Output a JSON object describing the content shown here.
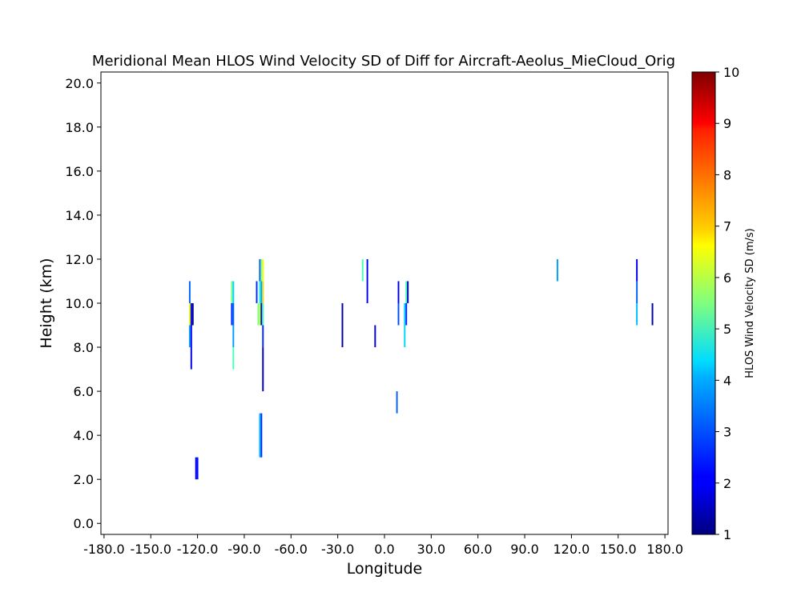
{
  "chart_data": {
    "type": "heatmap",
    "title": "Meridional Mean HLOS Wind Velocity SD of Diff for Aircraft-Aeolus_MieCloud_Orig",
    "xlabel": "Longitude",
    "ylabel": "Height (km)",
    "xlim": [
      -182,
      182
    ],
    "ylim": [
      -0.5,
      20.5
    ],
    "xticks": [
      -180,
      -150,
      -120,
      -90,
      -60,
      -30,
      0,
      30,
      60,
      90,
      120,
      150,
      180
    ],
    "xtick_labels": [
      "-180.0",
      "-150.0",
      "-120.0",
      "-90.0",
      "-60.0",
      "-30.0",
      "0.0",
      "30.0",
      "60.0",
      "90.0",
      "120.0",
      "150.0",
      "180.0"
    ],
    "yticks": [
      0,
      2,
      4,
      6,
      8,
      10,
      12,
      14,
      16,
      18,
      20
    ],
    "ytick_labels": [
      "0.0",
      "2.0",
      "4.0",
      "6.0",
      "8.0",
      "10.0",
      "12.0",
      "14.0",
      "16.0",
      "18.0",
      "20.0"
    ],
    "grid": false,
    "colormap": "jet",
    "colorbar": {
      "label": "HLOS Wind Velocity SD (m/s)",
      "min": 1,
      "max": 10,
      "ticks": [
        1,
        2,
        3,
        4,
        5,
        6,
        7,
        8,
        9,
        10
      ],
      "tick_labels": [
        "1",
        "2",
        "3",
        "4",
        "5",
        "6",
        "7",
        "8",
        "9",
        "10"
      ]
    },
    "cells": [
      {
        "lon": -125,
        "y0": 10,
        "y1": 11,
        "value": 3.0
      },
      {
        "lon": -125,
        "y0": 9,
        "y1": 10,
        "value": 6.5
      },
      {
        "lon": -125,
        "y0": 8,
        "y1": 9,
        "value": 3.5
      },
      {
        "lon": -124,
        "y0": 7,
        "y1": 10,
        "value": 2.0
      },
      {
        "lon": -123,
        "y0": 9,
        "y1": 10,
        "value": 1.2
      },
      {
        "lon": -121,
        "y0": 2,
        "y1": 3,
        "value": 2.0
      },
      {
        "lon": -120,
        "y0": 2,
        "y1": 3,
        "value": 2.2
      },
      {
        "lon": -98,
        "y0": 10,
        "y1": 11,
        "value": 5.5
      },
      {
        "lon": -98,
        "y0": 9,
        "y1": 10,
        "value": 2.5
      },
      {
        "lon": -97,
        "y0": 10,
        "y1": 11,
        "value": 4.0
      },
      {
        "lon": -97,
        "y0": 9,
        "y1": 10,
        "value": 3.0
      },
      {
        "lon": -97,
        "y0": 8,
        "y1": 9,
        "value": 3.5
      },
      {
        "lon": -97,
        "y0": 7,
        "y1": 8,
        "value": 5.0
      },
      {
        "lon": -82,
        "y0": 10,
        "y1": 11,
        "value": 2.5
      },
      {
        "lon": -81,
        "y0": 9,
        "y1": 10,
        "value": 5.5
      },
      {
        "lon": -80,
        "y0": 11,
        "y1": 12,
        "value": 3.0
      },
      {
        "lon": -80,
        "y0": 10,
        "y1": 11,
        "value": 4.5
      },
      {
        "lon": -80,
        "y0": 9,
        "y1": 10,
        "value": 6.0
      },
      {
        "lon": -80,
        "y0": 3,
        "y1": 5,
        "value": 3.8
      },
      {
        "lon": -79,
        "y0": 11,
        "y1": 12,
        "value": 5.5
      },
      {
        "lon": -79,
        "y0": 10,
        "y1": 11,
        "value": 3.5
      },
      {
        "lon": -79,
        "y0": 9,
        "y1": 10,
        "value": 1.5
      },
      {
        "lon": -79,
        "y0": 3,
        "y1": 5,
        "value": 2.5
      },
      {
        "lon": -78,
        "y0": 11,
        "y1": 12,
        "value": 6.5
      },
      {
        "lon": -78,
        "y0": 10,
        "y1": 11,
        "value": 7.0
      },
      {
        "lon": -78,
        "y0": 9,
        "y1": 10,
        "value": 5.0
      },
      {
        "lon": -78,
        "y0": 8,
        "y1": 9,
        "value": 2.5
      },
      {
        "lon": -78,
        "y0": 6,
        "y1": 8,
        "value": 1.5
      },
      {
        "lon": -27,
        "y0": 8,
        "y1": 10,
        "value": 1.3
      },
      {
        "lon": -14,
        "y0": 11,
        "y1": 12,
        "value": 5.0
      },
      {
        "lon": -11,
        "y0": 10,
        "y1": 12,
        "value": 2.0
      },
      {
        "lon": -6,
        "y0": 8,
        "y1": 9,
        "value": 1.8
      },
      {
        "lon": 8,
        "y0": 5,
        "y1": 6,
        "value": 3.0
      },
      {
        "lon": 9,
        "y0": 10,
        "y1": 11,
        "value": 2.0
      },
      {
        "lon": 9,
        "y0": 9,
        "y1": 10,
        "value": 2.8
      },
      {
        "lon": 13,
        "y0": 8,
        "y1": 10,
        "value": 4.0
      },
      {
        "lon": 14,
        "y0": 9,
        "y1": 10,
        "value": 2.5
      },
      {
        "lon": 14,
        "y0": 10,
        "y1": 11,
        "value": 5.0
      },
      {
        "lon": 15,
        "y0": 10,
        "y1": 11,
        "value": 1.5
      },
      {
        "lon": 111,
        "y0": 11,
        "y1": 12,
        "value": 3.5
      },
      {
        "lon": 162,
        "y0": 11,
        "y1": 12,
        "value": 2.0
      },
      {
        "lon": 162,
        "y0": 10,
        "y1": 11,
        "value": 3.0
      },
      {
        "lon": 162,
        "y0": 9,
        "y1": 10,
        "value": 3.8
      },
      {
        "lon": 172,
        "y0": 9,
        "y1": 10,
        "value": 1.3
      }
    ]
  }
}
